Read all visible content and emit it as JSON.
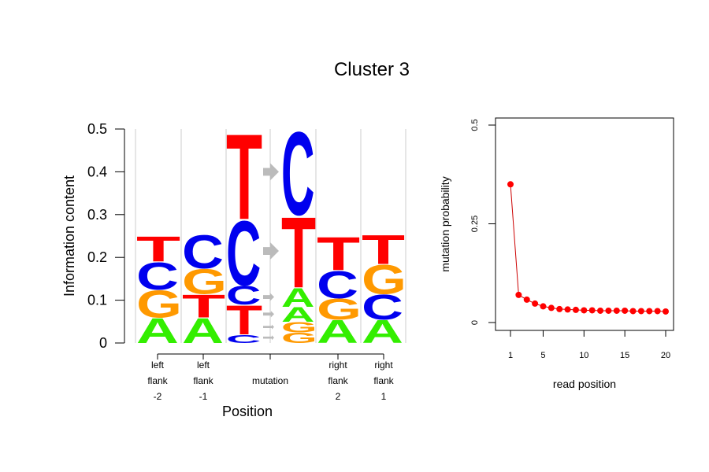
{
  "title": "Cluster 3",
  "colors": {
    "A": "#33ee00",
    "C": "#0000ee",
    "G": "#ff9900",
    "T": "#ff0000",
    "arrow": "#bbbbbb",
    "point": "#ff0000",
    "line": "#cc0000"
  },
  "chart_data": [
    {
      "type": "sequence-logo",
      "ylabel": "Information content",
      "xlabel": "Position",
      "ylim": [
        0,
        0.5
      ],
      "yticks": [
        "0",
        "0.1",
        "0.2",
        "0.3",
        "0.4",
        "0.5"
      ],
      "positions": [
        {
          "label": [
            "left",
            "flank",
            "-2"
          ],
          "stack": [
            {
              "base": "A",
              "value": 0.06
            },
            {
              "base": "G",
              "value": 0.065
            },
            {
              "base": "C",
              "value": 0.065
            },
            {
              "base": "T",
              "value": 0.06
            }
          ]
        },
        {
          "label": [
            "left",
            "flank",
            "-1"
          ],
          "stack": [
            {
              "base": "A",
              "value": 0.06
            },
            {
              "base": "T",
              "value": 0.055
            },
            {
              "base": "G",
              "value": 0.06
            },
            {
              "base": "C",
              "value": 0.08
            }
          ]
        },
        {
          "label": [
            "mutation"
          ],
          "mutation": true,
          "ref": [
            {
              "base": "C",
              "value": 0.02
            },
            {
              "base": "T",
              "value": 0.07
            },
            {
              "base": "C",
              "value": 0.045
            },
            {
              "base": "C",
              "value": 0.155
            },
            {
              "base": "T",
              "value": 0.205
            }
          ],
          "alt": [
            {
              "base": "G",
              "value": 0.025
            },
            {
              "base": "G",
              "value": 0.025
            },
            {
              "base": "A",
              "value": 0.035
            },
            {
              "base": "A",
              "value": 0.045
            },
            {
              "base": "T",
              "value": 0.17
            },
            {
              "base": "C",
              "value": 0.2
            }
          ]
        },
        {
          "label": [
            "right",
            "flank",
            "2"
          ],
          "stack": [
            {
              "base": "A",
              "value": 0.055
            },
            {
              "base": "G",
              "value": 0.05
            },
            {
              "base": "C",
              "value": 0.065
            },
            {
              "base": "T",
              "value": 0.08
            }
          ]
        },
        {
          "label": [
            "right",
            "flank",
            "1"
          ],
          "stack": [
            {
              "base": "A",
              "value": 0.055
            },
            {
              "base": "C",
              "value": 0.06
            },
            {
              "base": "G",
              "value": 0.07
            },
            {
              "base": "T",
              "value": 0.07
            }
          ]
        }
      ]
    },
    {
      "type": "scatter",
      "xlabel": "read position",
      "ylabel": "mutation probability",
      "xlim": [
        0,
        21
      ],
      "ylim": [
        0,
        0.5
      ],
      "xticks": [
        "1",
        "5",
        "10",
        "15",
        "20"
      ],
      "yticks": [
        "0",
        "0.25",
        "0.5"
      ],
      "x": [
        1,
        2,
        3,
        4,
        5,
        6,
        7,
        8,
        9,
        10,
        11,
        12,
        13,
        14,
        15,
        16,
        17,
        18,
        19,
        20
      ],
      "y": [
        0.35,
        0.07,
        0.058,
        0.048,
        0.041,
        0.037,
        0.034,
        0.033,
        0.032,
        0.031,
        0.031,
        0.03,
        0.03,
        0.03,
        0.03,
        0.029,
        0.029,
        0.029,
        0.029,
        0.028
      ]
    }
  ]
}
